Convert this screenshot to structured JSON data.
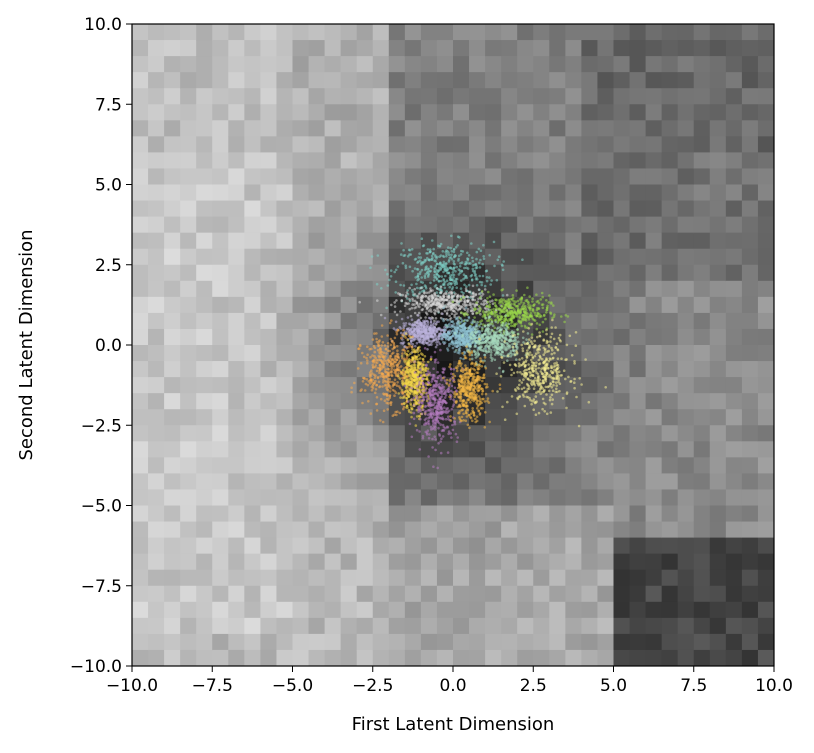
{
  "chart_data": {
    "type": "scatter",
    "title": "",
    "xlabel": "First Latent Dimension",
    "ylabel": "Second Latent Dimension",
    "xlim": [
      -10,
      10
    ],
    "ylim": [
      -10,
      10
    ],
    "x_ticks": [
      -10,
      -7.5,
      -5,
      -2.5,
      0,
      2.5,
      5,
      7.5,
      10
    ],
    "y_ticks": [
      -10,
      -7.5,
      -5,
      -2.5,
      0,
      2.5,
      5,
      7.5,
      10
    ],
    "x_tick_labels": [
      "−10.0",
      "−7.5",
      "−5.0",
      "−2.5",
      "0.0",
      "2.5",
      "5.0",
      "7.5",
      "10.0"
    ],
    "y_tick_labels": [
      "−10.0",
      "−7.5",
      "−5.0",
      "−2.5",
      "0.0",
      "2.5",
      "5.0",
      "7.5",
      "10.0"
    ],
    "grid": false,
    "legend": "none",
    "background": "grayscale image mosaic of decoded latent samples (40x40 grid), darkest around the origin",
    "series": [
      {
        "color": "#7fd1c8",
        "center": [
          -0.3,
          2.3
        ],
        "spread": [
          1.3,
          0.75
        ]
      },
      {
        "color": "#d9d9d9",
        "center": [
          -0.2,
          1.3
        ],
        "spread": [
          1.2,
          0.35
        ]
      },
      {
        "color": "#9ad94a",
        "center": [
          1.8,
          1.0
        ],
        "spread": [
          1.0,
          0.45
        ]
      },
      {
        "color": "#bcb3dd",
        "center": [
          -0.9,
          0.4
        ],
        "spread": [
          0.6,
          0.35
        ]
      },
      {
        "color": "#8fc3d4",
        "center": [
          0.3,
          0.3
        ],
        "spread": [
          0.5,
          0.4
        ]
      },
      {
        "color": "#a9ddc0",
        "center": [
          1.3,
          0.1
        ],
        "spread": [
          0.7,
          0.5
        ]
      },
      {
        "color": "#f5ef94",
        "center": [
          2.7,
          -0.8
        ],
        "spread": [
          0.8,
          0.95
        ]
      },
      {
        "color": "#f6a94e",
        "center": [
          -2.0,
          -0.8
        ],
        "spread": [
          0.7,
          0.95
        ]
      },
      {
        "color": "#f5d84a",
        "center": [
          -1.2,
          -1.1
        ],
        "spread": [
          0.35,
          0.8
        ]
      },
      {
        "color": "#b47cc0",
        "center": [
          -0.5,
          -1.8
        ],
        "spread": [
          0.55,
          1.0
        ]
      },
      {
        "color": "#f3b646",
        "center": [
          0.5,
          -1.4
        ],
        "spread": [
          0.45,
          0.8
        ]
      }
    ]
  }
}
